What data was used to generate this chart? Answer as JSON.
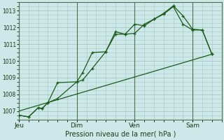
{
  "background_color": "#cce8e8",
  "grid_color": "#a8c8c0",
  "line_color": "#1a5c1a",
  "xlabel": "Pression niveau de la mer( hPa )",
  "ylim": [
    1006.5,
    1013.5
  ],
  "yticks": [
    1007,
    1008,
    1009,
    1010,
    1011,
    1012,
    1013
  ],
  "xtick_labels": [
    "Jeu",
    "Dim",
    "Ven",
    "Sam"
  ],
  "xtick_positions": [
    0,
    3,
    6,
    9
  ],
  "xlim": [
    0,
    10.5
  ],
  "series1_x": [
    0,
    0.5,
    1.0,
    1.2,
    1.5,
    2.0,
    3.0,
    3.3,
    3.8,
    4.5,
    5.0,
    5.5,
    6.0,
    6.5,
    7.0,
    7.5,
    8.0,
    8.5,
    9.0,
    9.5,
    10.0
  ],
  "series1_y": [
    1006.75,
    1006.65,
    1007.2,
    1007.15,
    1007.5,
    1007.75,
    1008.75,
    1009.3,
    1010.5,
    1010.55,
    1011.6,
    1011.6,
    1011.65,
    1012.2,
    1012.5,
    1012.85,
    1013.3,
    1012.7,
    1011.9,
    1011.85,
    1010.4
  ],
  "series2_x": [
    0,
    0.5,
    1.0,
    1.2,
    1.5,
    2.0,
    3.0,
    3.3,
    3.8,
    4.5,
    5.0,
    5.5,
    6.0,
    6.5,
    7.0,
    7.5,
    8.0,
    8.5,
    9.0,
    9.5,
    10.0
  ],
  "series2_y": [
    1006.75,
    1006.65,
    1007.2,
    1007.15,
    1007.5,
    1008.7,
    1008.75,
    1008.85,
    1009.55,
    1010.55,
    1011.75,
    1011.6,
    1012.2,
    1012.1,
    1012.5,
    1012.8,
    1013.25,
    1012.2,
    1011.85,
    1011.85,
    1010.4
  ],
  "series3_x": [
    0,
    10.0
  ],
  "series3_y": [
    1007.0,
    1010.4
  ]
}
